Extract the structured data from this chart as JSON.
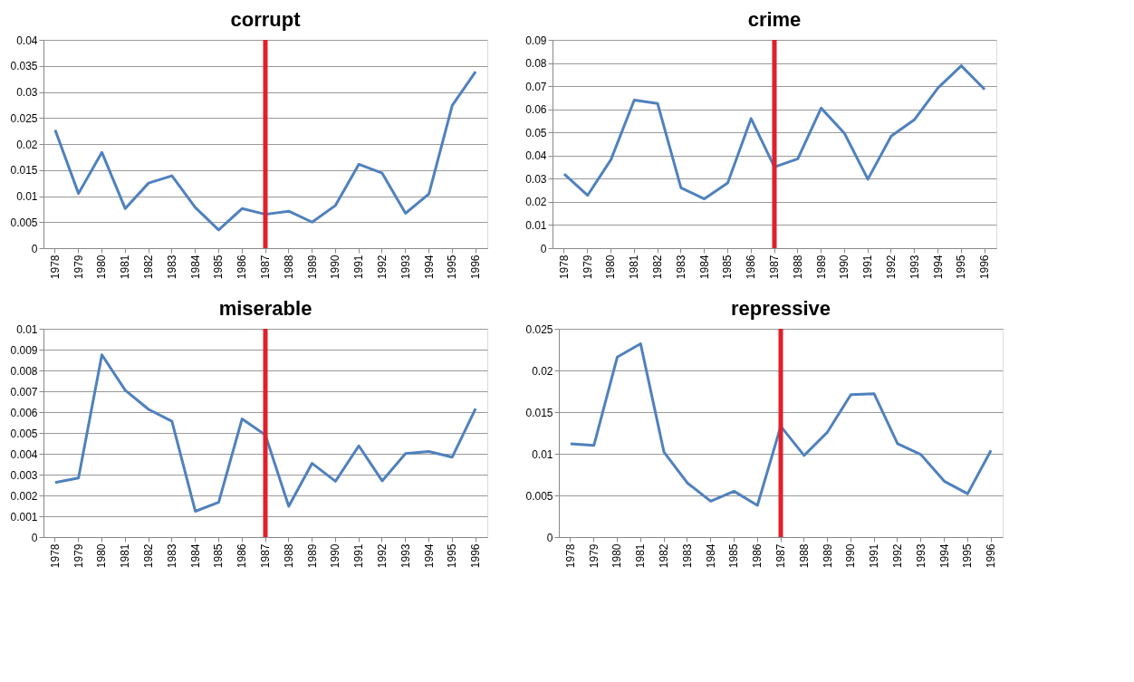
{
  "chart_data": [
    {
      "type": "line",
      "title": "corrupt",
      "categories": [
        "1978",
        "1979",
        "1980",
        "1981",
        "1982",
        "1983",
        "1984",
        "1985",
        "1986",
        "1987",
        "1988",
        "1989",
        "1990",
        "1991",
        "1992",
        "1993",
        "1994",
        "1995",
        "1996"
      ],
      "series": [
        {
          "color": "#4f81bd",
          "values": [
            0.0227,
            0.0105,
            0.0184,
            0.0076,
            0.0125,
            0.0139,
            0.0078,
            0.0035,
            0.0076,
            0.0065,
            0.0071,
            0.005,
            0.0082,
            0.0161,
            0.0144,
            0.0067,
            0.0104,
            0.0274,
            0.0339
          ]
        }
      ],
      "ylim": [
        0,
        0.04
      ],
      "yticks": [
        0,
        0.005,
        0.01,
        0.015,
        0.02,
        0.025,
        0.03,
        0.035,
        0.04
      ],
      "grid": "y",
      "ref_lines": [
        {
          "axis": "x",
          "value": "1987",
          "color": "#e0202a"
        }
      ]
    },
    {
      "type": "line",
      "title": "crime",
      "categories": [
        "1978",
        "1979",
        "1980",
        "1981",
        "1982",
        "1983",
        "1984",
        "1985",
        "1986",
        "1987",
        "1988",
        "1989",
        "1990",
        "1991",
        "1992",
        "1993",
        "1994",
        "1995",
        "1996"
      ],
      "series": [
        {
          "color": "#4f81bd",
          "values": [
            0.032,
            0.0228,
            0.0382,
            0.064,
            0.0625,
            0.0261,
            0.0213,
            0.0282,
            0.056,
            0.0351,
            0.0386,
            0.0605,
            0.0496,
            0.0298,
            0.0484,
            0.0556,
            0.0692,
            0.0788,
            0.0686
          ]
        }
      ],
      "ylim": [
        0,
        0.09
      ],
      "yticks": [
        0,
        0.01,
        0.02,
        0.03,
        0.04,
        0.05,
        0.06,
        0.07,
        0.08,
        0.09
      ],
      "grid": "y",
      "ref_lines": [
        {
          "axis": "x",
          "value": "1987",
          "color": "#e0202a"
        }
      ]
    },
    {
      "type": "line",
      "title": "miserable",
      "categories": [
        "1978",
        "1979",
        "1980",
        "1981",
        "1982",
        "1983",
        "1984",
        "1985",
        "1986",
        "1987",
        "1988",
        "1989",
        "1990",
        "1991",
        "1992",
        "1993",
        "1994",
        "1995",
        "1996"
      ],
      "series": [
        {
          "color": "#4f81bd",
          "values": [
            0.00262,
            0.00284,
            0.00875,
            0.00705,
            0.00613,
            0.00556,
            0.00124,
            0.00167,
            0.00567,
            0.0049,
            0.00148,
            0.00354,
            0.00268,
            0.00438,
            0.0027,
            0.00401,
            0.00411,
            0.00384,
            0.00617
          ]
        }
      ],
      "ylim": [
        0,
        0.01
      ],
      "yticks": [
        0,
        0.001,
        0.002,
        0.003,
        0.004,
        0.005,
        0.006,
        0.007,
        0.008,
        0.009,
        0.01
      ],
      "grid": "y",
      "ref_lines": [
        {
          "axis": "x",
          "value": "1987",
          "color": "#e0202a"
        }
      ]
    },
    {
      "type": "line",
      "title": "repressive",
      "categories": [
        "1978",
        "1979",
        "1980",
        "1981",
        "1982",
        "1983",
        "1984",
        "1985",
        "1986",
        "1987",
        "1988",
        "1989",
        "1990",
        "1991",
        "1992",
        "1993",
        "1994",
        "1995",
        "1996"
      ],
      "series": [
        {
          "color": "#4f81bd",
          "values": [
            0.0112,
            0.011,
            0.0216,
            0.0232,
            0.0102,
            0.0065,
            0.0043,
            0.0055,
            0.0038,
            0.0133,
            0.0098,
            0.0126,
            0.0171,
            0.0172,
            0.0112,
            0.0099,
            0.0067,
            0.0052,
            0.0104
          ]
        }
      ],
      "ylim": [
        0,
        0.025
      ],
      "yticks": [
        0,
        0.005,
        0.01,
        0.015,
        0.02,
        0.025
      ],
      "grid": "y",
      "ref_lines": [
        {
          "axis": "x",
          "value": "1987",
          "color": "#e0202a"
        }
      ]
    }
  ]
}
